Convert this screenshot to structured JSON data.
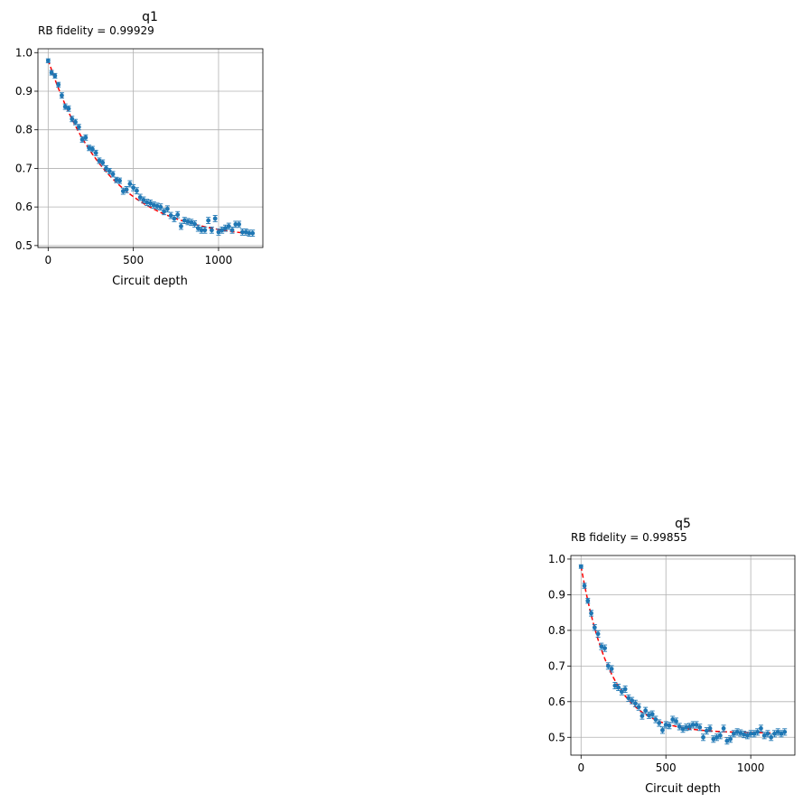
{
  "chart_data": [
    {
      "type": "scatter",
      "title": "q1",
      "subtitle": "RB fidelity = 0.99929",
      "xlabel": "Circuit depth",
      "ylabel": "",
      "xlim": [
        -60,
        1260
      ],
      "ylim": [
        0.495,
        1.01
      ],
      "xticks": [
        0,
        500,
        1000
      ],
      "yticks": [
        0.5,
        0.6,
        0.7,
        0.8,
        0.9,
        1.0
      ],
      "ytick_labels": [
        "0.5",
        "0.6",
        "0.7",
        "0.8",
        "0.9",
        "1.0"
      ],
      "grid": true,
      "marker_color": "#1f77b4",
      "fit_color": "#ff0000",
      "fit": {
        "A": 0.466,
        "p": 0.99715,
        "B": 0.515
      },
      "series": [
        {
          "x": [
            0,
            20,
            40,
            60,
            80,
            100,
            120,
            140,
            160,
            180,
            200,
            220,
            240,
            260,
            280,
            300,
            320,
            340,
            360,
            380,
            400,
            420,
            440,
            460,
            480,
            500,
            520,
            540,
            560,
            580,
            600,
            620,
            640,
            660,
            680,
            700,
            720,
            740,
            760,
            780,
            800,
            820,
            840,
            860,
            880,
            900,
            920,
            940,
            960,
            980,
            1000,
            1020,
            1040,
            1060,
            1080,
            1100,
            1120,
            1140,
            1160,
            1180,
            1200
          ],
          "y": [
            0.979,
            0.948,
            0.94,
            0.917,
            0.889,
            0.86,
            0.855,
            0.828,
            0.82,
            0.807,
            0.775,
            0.78,
            0.753,
            0.75,
            0.74,
            0.72,
            0.715,
            0.7,
            0.693,
            0.685,
            0.67,
            0.668,
            0.641,
            0.645,
            0.66,
            0.65,
            0.642,
            0.625,
            0.618,
            0.612,
            0.61,
            0.605,
            0.602,
            0.6,
            0.588,
            0.595,
            0.578,
            0.57,
            0.58,
            0.55,
            0.565,
            0.562,
            0.56,
            0.556,
            0.545,
            0.54,
            0.54,
            0.565,
            0.54,
            0.57,
            0.535,
            0.54,
            0.545,
            0.55,
            0.54,
            0.555,
            0.555,
            0.535,
            0.535,
            0.532,
            0.532
          ],
          "err": [
            0.005,
            0.006,
            0.006,
            0.006,
            0.007,
            0.007,
            0.007,
            0.007,
            0.007,
            0.007,
            0.007,
            0.007,
            0.007,
            0.007,
            0.007,
            0.007,
            0.007,
            0.007,
            0.007,
            0.007,
            0.007,
            0.007,
            0.008,
            0.008,
            0.008,
            0.008,
            0.008,
            0.008,
            0.008,
            0.008,
            0.008,
            0.008,
            0.008,
            0.008,
            0.008,
            0.008,
            0.008,
            0.008,
            0.008,
            0.008,
            0.008,
            0.008,
            0.008,
            0.008,
            0.008,
            0.008,
            0.008,
            0.008,
            0.008,
            0.008,
            0.008,
            0.008,
            0.008,
            0.008,
            0.008,
            0.008,
            0.008,
            0.008,
            0.008,
            0.008,
            0.008
          ]
        }
      ]
    },
    {
      "type": "scatter",
      "title": "q5",
      "subtitle": "RB fidelity = 0.99855",
      "xlabel": "Circuit depth",
      "ylabel": "",
      "xlim": [
        -60,
        1260
      ],
      "ylim": [
        0.45,
        1.01
      ],
      "xticks": [
        0,
        500,
        1000
      ],
      "yticks": [
        0.5,
        0.6,
        0.7,
        0.8,
        0.9,
        1.0
      ],
      "ytick_labels": [
        "0.5",
        "0.6",
        "0.7",
        "0.8",
        "0.9",
        "1.0"
      ],
      "grid": true,
      "marker_color": "#1f77b4",
      "fit_color": "#ff0000",
      "fit": {
        "A": 0.468,
        "p": 0.99424,
        "B": 0.512
      },
      "series": [
        {
          "x": [
            0,
            20,
            40,
            60,
            80,
            100,
            120,
            140,
            160,
            180,
            200,
            220,
            240,
            260,
            280,
            300,
            320,
            340,
            360,
            380,
            400,
            420,
            440,
            460,
            480,
            500,
            520,
            540,
            560,
            580,
            600,
            620,
            640,
            660,
            680,
            700,
            720,
            740,
            760,
            780,
            800,
            820,
            840,
            860,
            880,
            900,
            920,
            940,
            960,
            980,
            1000,
            1020,
            1040,
            1060,
            1080,
            1100,
            1120,
            1140,
            1160,
            1180,
            1200
          ],
          "y": [
            0.979,
            0.925,
            0.883,
            0.848,
            0.808,
            0.79,
            0.755,
            0.75,
            0.7,
            0.692,
            0.645,
            0.64,
            0.628,
            0.635,
            0.61,
            0.603,
            0.595,
            0.585,
            0.56,
            0.575,
            0.562,
            0.565,
            0.55,
            0.54,
            0.52,
            0.535,
            0.533,
            0.55,
            0.545,
            0.53,
            0.523,
            0.528,
            0.53,
            0.535,
            0.535,
            0.528,
            0.5,
            0.518,
            0.525,
            0.495,
            0.5,
            0.505,
            0.525,
            0.49,
            0.495,
            0.51,
            0.515,
            0.512,
            0.508,
            0.505,
            0.51,
            0.51,
            0.515,
            0.525,
            0.505,
            0.51,
            0.5,
            0.51,
            0.515,
            0.51,
            0.515
          ],
          "err": [
            0.005,
            0.007,
            0.007,
            0.008,
            0.008,
            0.009,
            0.009,
            0.009,
            0.009,
            0.009,
            0.009,
            0.009,
            0.009,
            0.009,
            0.009,
            0.009,
            0.009,
            0.009,
            0.009,
            0.009,
            0.009,
            0.009,
            0.009,
            0.009,
            0.009,
            0.009,
            0.009,
            0.009,
            0.009,
            0.009,
            0.009,
            0.009,
            0.009,
            0.009,
            0.009,
            0.009,
            0.009,
            0.009,
            0.009,
            0.009,
            0.009,
            0.009,
            0.009,
            0.009,
            0.009,
            0.009,
            0.009,
            0.009,
            0.009,
            0.009,
            0.009,
            0.009,
            0.009,
            0.009,
            0.009,
            0.009,
            0.009,
            0.009,
            0.009,
            0.009,
            0.009
          ]
        }
      ]
    }
  ]
}
